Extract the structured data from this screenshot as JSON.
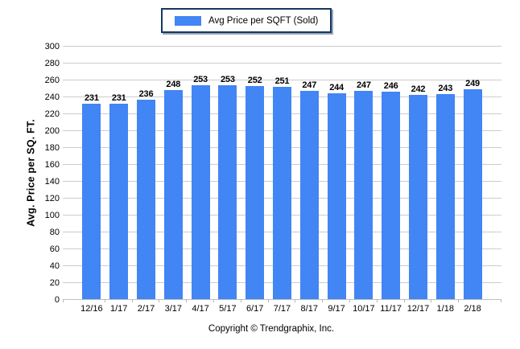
{
  "chart_data": {
    "type": "bar",
    "title": "",
    "series_name": "Avg Price per SQFT (Sold)",
    "categories": [
      "12/16",
      "1/17",
      "2/17",
      "3/17",
      "4/17",
      "5/17",
      "6/17",
      "7/17",
      "8/17",
      "9/17",
      "10/17",
      "11/17",
      "12/17",
      "1/18",
      "2/18"
    ],
    "values": [
      231,
      231,
      236,
      248,
      253,
      253,
      252,
      251,
      247,
      244,
      247,
      246,
      242,
      243,
      249
    ],
    "xlabel": "",
    "ylabel": "Avg. Price per SQ. FT.",
    "ylim": [
      0,
      300
    ],
    "ytick_step": 20,
    "grid": "horizontal",
    "legend_position": "top-center",
    "value_labels": "above-bars"
  },
  "colors": {
    "bar": "#4285F4",
    "legend_border": "#17375E",
    "gridline": "#CCCCCC",
    "axis_line": "#C0C0C0",
    "text": "#000000"
  },
  "footer": {
    "copyright": "Copyright © Trendgraphix, Inc."
  }
}
